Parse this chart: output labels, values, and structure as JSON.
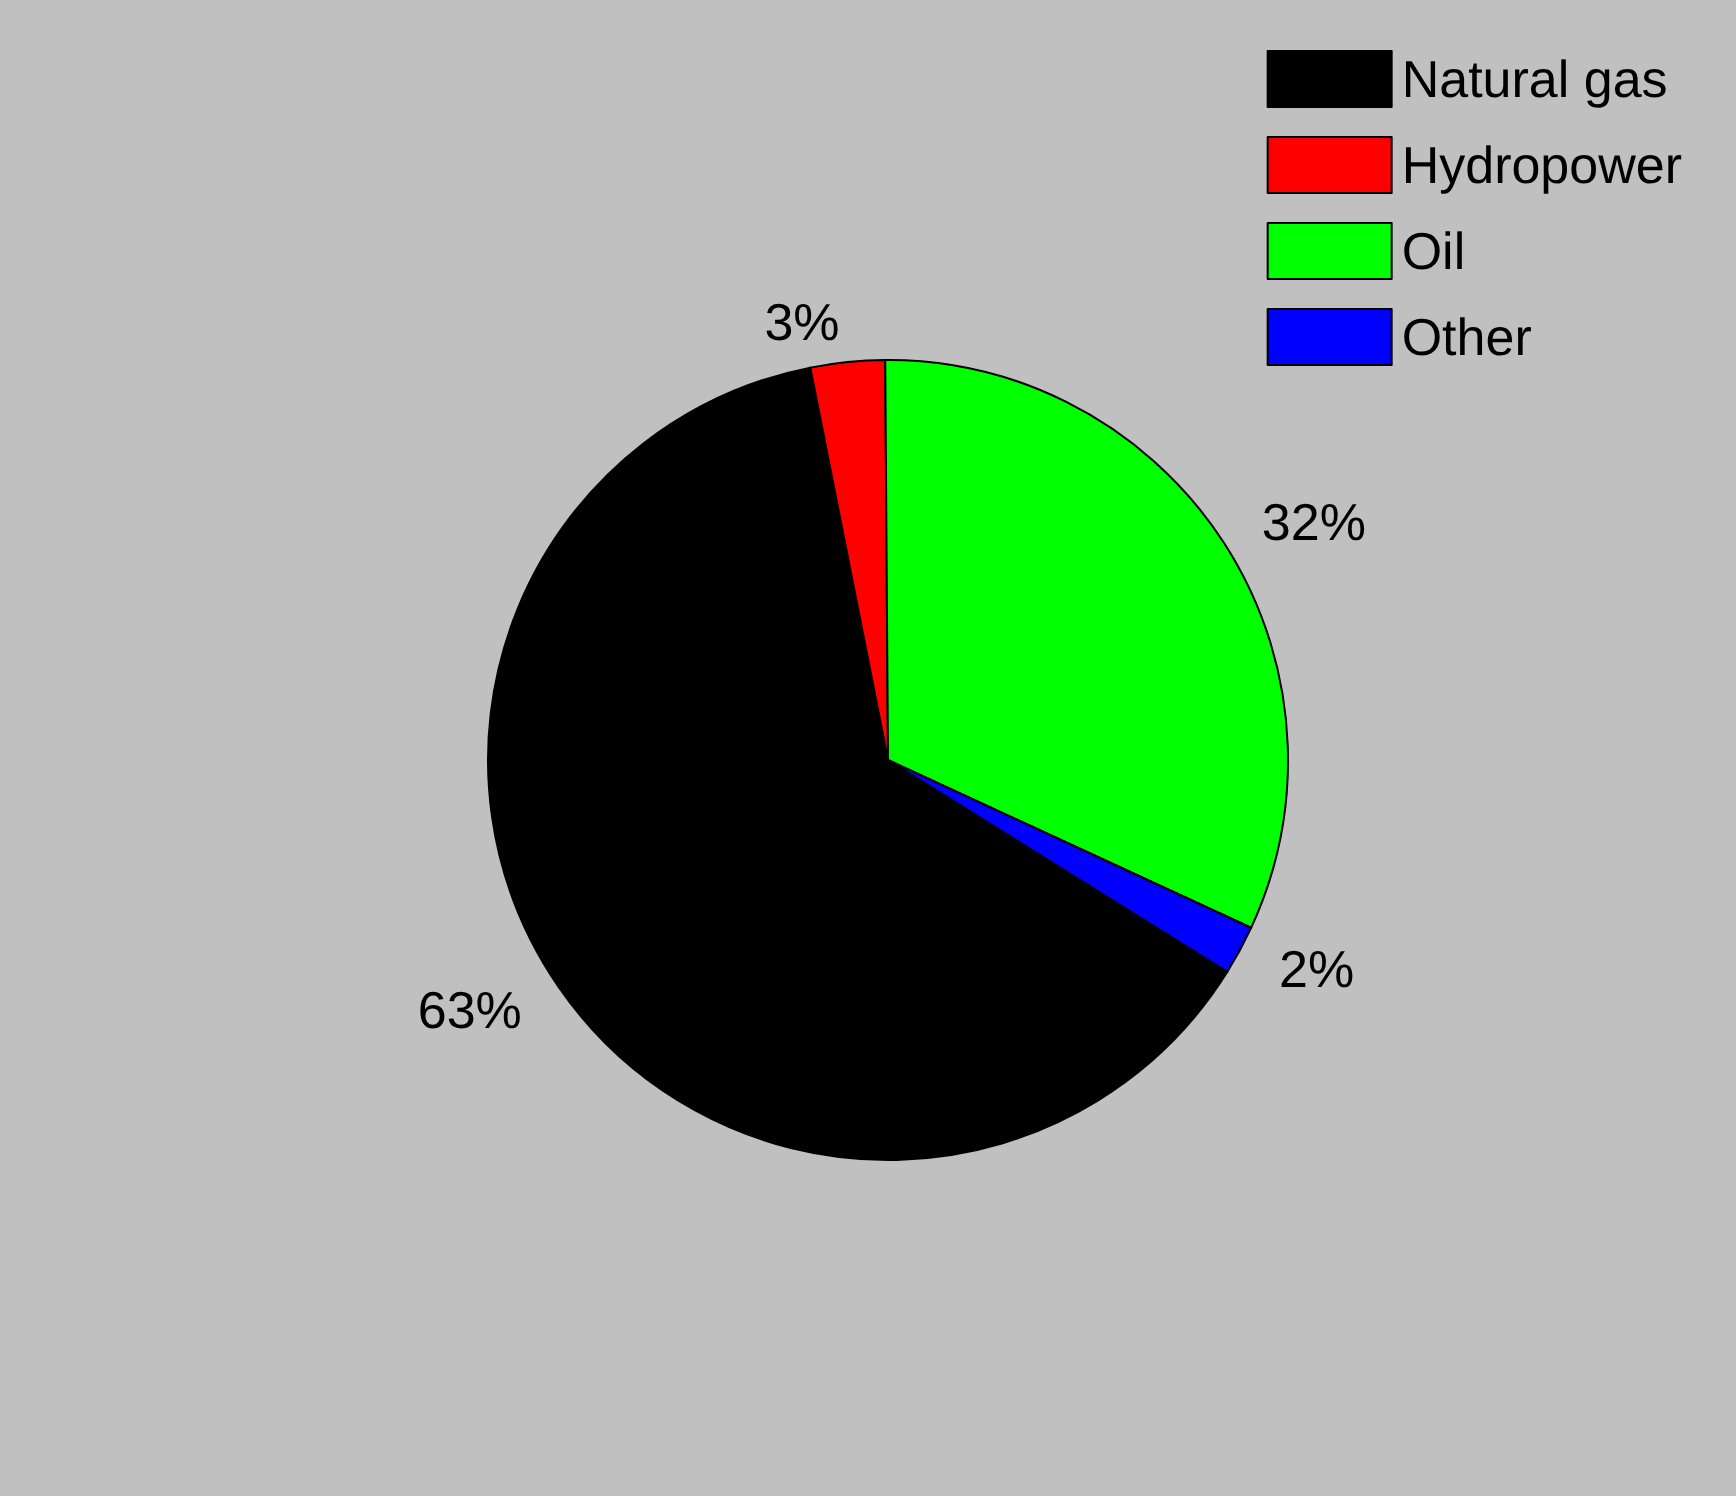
{
  "chart_data": {
    "type": "pie",
    "categories": [
      "Natural gas",
      "Hydropower",
      "Oil",
      "Other"
    ],
    "values": [
      63,
      3,
      32,
      2
    ],
    "colors": [
      "#000000",
      "#ff0000",
      "#00ff00",
      "#0000ff"
    ],
    "value_labels": [
      "63%",
      "3%",
      "32%",
      "2%"
    ],
    "legend": "top right"
  }
}
